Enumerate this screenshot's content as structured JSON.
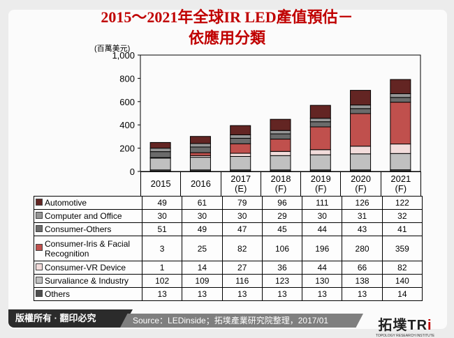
{
  "title_line1": "2015～2021年全球IR LED產值預估－",
  "title_line2": "依應用分類",
  "chart_data": {
    "type": "bar",
    "stacked": true,
    "ylabel": "(百萬美元)",
    "ylim": [
      0,
      1000
    ],
    "yticks": [
      0,
      200,
      400,
      600,
      800,
      1000
    ],
    "ytick_labels": [
      "0",
      "200",
      "400",
      "600",
      "800",
      "1,000"
    ],
    "categories": [
      [
        "2015"
      ],
      [
        "2016"
      ],
      [
        "2017",
        "(E)"
      ],
      [
        "2018",
        "(F)"
      ],
      [
        "2019",
        "(F)"
      ],
      [
        "2020",
        "(F)"
      ],
      [
        "2021",
        "(F)"
      ]
    ],
    "series": [
      {
        "name": "Others",
        "color": "#4d4d4d",
        "values": [
          13,
          13,
          13,
          13,
          13,
          13,
          14
        ]
      },
      {
        "name": "Survaliance & Industry",
        "color": "#c0c0c0",
        "values": [
          102,
          109,
          116,
          123,
          130,
          138,
          140
        ]
      },
      {
        "name": "Consumer-VR Device",
        "color": "#f2dcdb",
        "values": [
          1,
          14,
          27,
          36,
          44,
          66,
          82
        ]
      },
      {
        "name": "Consumer-Iris & Facial Recognition",
        "color": "#c0504d",
        "values": [
          3,
          25,
          82,
          106,
          196,
          280,
          359
        ]
      },
      {
        "name": "Consumer-Others",
        "color": "#6b6b6b",
        "values": [
          51,
          49,
          47,
          45,
          44,
          43,
          41
        ]
      },
      {
        "name": "Computer and Office",
        "color": "#969696",
        "values": [
          30,
          30,
          30,
          29,
          30,
          31,
          32
        ]
      },
      {
        "name": "Automotive",
        "color": "#632523",
        "values": [
          49,
          61,
          79,
          96,
          111,
          126,
          122
        ]
      }
    ],
    "table_order": [
      "Automotive",
      "Computer and Office",
      "Consumer-Others",
      "Consumer-Iris & Facial Recognition",
      "Consumer-VR Device",
      "Survaliance & Industry",
      "Others"
    ],
    "grid": false
  },
  "footer": {
    "copyright": "版權所有 · 翻印必究",
    "source": "Source：LEDinside；拓墣產業研究院整理，2017/01",
    "logo": "拓墣TRi",
    "logo_sub": "TOPOLOGY RESEARCH INSTITUTE"
  }
}
